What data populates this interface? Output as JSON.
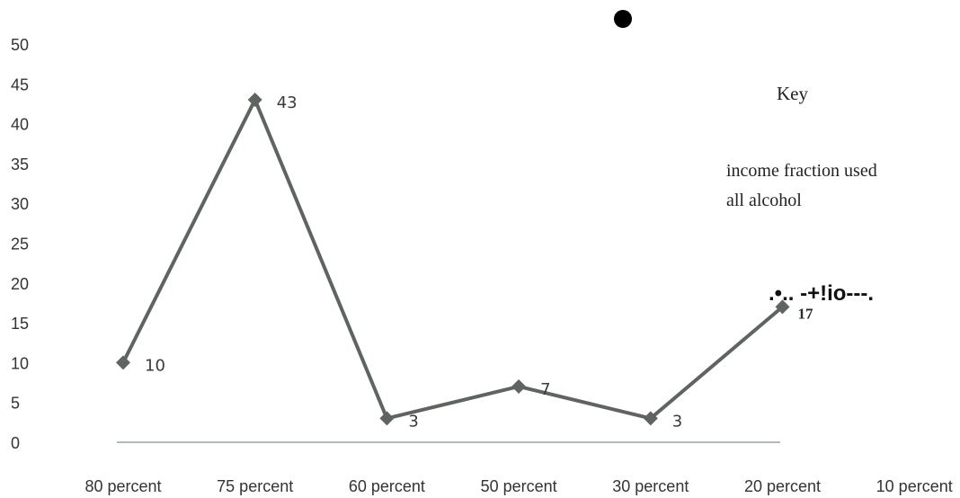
{
  "chart_data": {
    "type": "line",
    "categories": [
      "80 percent",
      "75 percent",
      "60 percent",
      "50 percent",
      "30 percent",
      "20 percent",
      "10 percent"
    ],
    "series": [
      {
        "name": "income fraction used all alcohol",
        "values": [
          10,
          43,
          3,
          7,
          3,
          17,
          null
        ]
      }
    ],
    "data_labels": [
      "10",
      "43",
      "3",
      "7",
      "3",
      "17",
      ""
    ],
    "y_ticks": [
      "0",
      "5",
      "10",
      "15",
      "20",
      "25",
      "30",
      "35",
      "40",
      "45",
      "50"
    ],
    "ylim": [
      0,
      50
    ],
    "title": "",
    "xlabel": "",
    "ylabel": "",
    "grid": false,
    "legend": {
      "title": "Key",
      "line1": "income fraction used",
      "line2": "all alcohol",
      "glyph": ".•.. -+!io---.",
      "placement": "right"
    },
    "colors": {
      "line": "#5f6461",
      "baseline": "#9aa0a6",
      "dot": "#000000"
    }
  }
}
